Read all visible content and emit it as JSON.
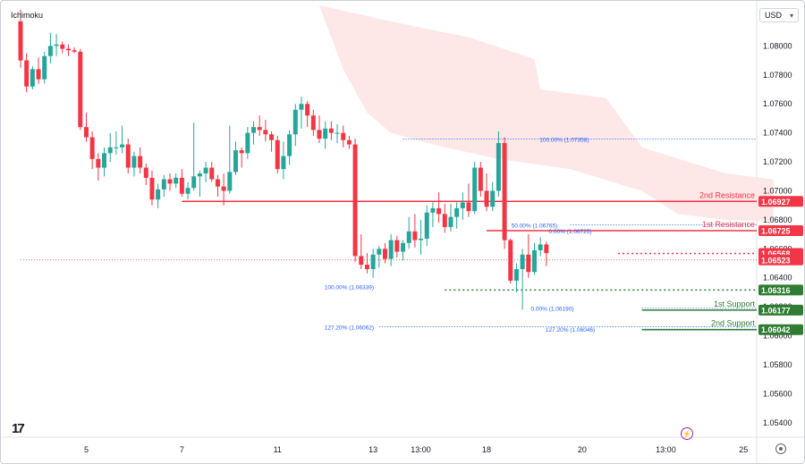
{
  "indicator": "Ichimoku",
  "currency": "USD",
  "icons": {
    "logo": "tradingview-logo",
    "settings": "gear-icon",
    "flash": "lightning-icon",
    "caret": "chevron-down-icon"
  },
  "colors": {
    "bull": "#26a69a",
    "bear": "#f23645",
    "cloud": "#fde7e7",
    "resistance": "#f23645",
    "support": "#2e7d32",
    "fib": "#2962ff",
    "axis_text": "#131722"
  },
  "chart_data": {
    "type": "candlestick",
    "instrument_ticks": [
      "1.08000",
      "1.07800",
      "1.07600",
      "1.07400",
      "1.07200",
      "1.07000",
      "1.06800",
      "1.06600",
      "1.06400",
      "1.06200",
      "1.06000",
      "1.05800",
      "1.05600",
      "1.05400"
    ],
    "ylim": [
      1.053,
      1.0828
    ],
    "x_ticks": [
      {
        "label": "5",
        "i": 11
      },
      {
        "label": "7",
        "i": 27
      },
      {
        "label": "11",
        "i": 43
      },
      {
        "label": "13",
        "i": 59
      },
      {
        "label": "13:00",
        "i": 67
      },
      {
        "label": "18",
        "i": 78
      },
      {
        "label": "20",
        "i": 94
      },
      {
        "label": "13:00",
        "i": 108
      },
      {
        "label": "25",
        "i": 121
      }
    ],
    "n_slots": 126,
    "candles": [
      [
        1.0817,
        1.0825,
        1.0785,
        1.079
      ],
      [
        1.079,
        1.0795,
        1.0768,
        1.0772
      ],
      [
        1.0772,
        1.0786,
        1.077,
        1.0784
      ],
      [
        1.0784,
        1.0792,
        1.0774,
        1.0777
      ],
      [
        1.0777,
        1.0796,
        1.0774,
        1.0793
      ],
      [
        1.0793,
        1.0809,
        1.0788,
        1.08
      ],
      [
        1.08,
        1.0808,
        1.0793,
        1.0801
      ],
      [
        1.0801,
        1.0803,
        1.0795,
        1.0798
      ],
      [
        1.0798,
        1.0801,
        1.0793,
        1.0797
      ],
      [
        1.0797,
        1.0799,
        1.0795,
        1.0796
      ],
      [
        1.0796,
        1.0798,
        1.0742,
        1.0744
      ],
      [
        1.0744,
        1.0754,
        1.0734,
        1.0737
      ],
      [
        1.0737,
        1.0741,
        1.0715,
        1.0722
      ],
      [
        1.0722,
        1.0726,
        1.0707,
        1.0716
      ],
      [
        1.0716,
        1.073,
        1.071,
        1.0726
      ],
      [
        1.0726,
        1.074,
        1.072,
        1.073
      ],
      [
        1.073,
        1.0741,
        1.0725,
        1.073
      ],
      [
        1.073,
        1.0745,
        1.0726,
        1.0732
      ],
      [
        1.0732,
        1.0736,
        1.0712,
        1.0716
      ],
      [
        1.0716,
        1.0727,
        1.071,
        1.0724
      ],
      [
        1.0724,
        1.073,
        1.0712,
        1.0716
      ],
      [
        1.0716,
        1.0719,
        1.0704,
        1.0709
      ],
      [
        1.0709,
        1.0714,
        1.069,
        1.0694
      ],
      [
        1.0694,
        1.0705,
        1.0688,
        1.0701
      ],
      [
        1.0701,
        1.0711,
        1.0696,
        1.0708
      ],
      [
        1.0708,
        1.0712,
        1.07,
        1.0705
      ],
      [
        1.0705,
        1.0712,
        1.0702,
        1.0709
      ],
      [
        1.0709,
        1.0715,
        1.0696,
        1.0698
      ],
      [
        1.0698,
        1.0706,
        1.0694,
        1.0702
      ],
      [
        1.0702,
        1.0747,
        1.07,
        1.071
      ],
      [
        1.071,
        1.0714,
        1.0696,
        1.0712
      ],
      [
        1.0712,
        1.072,
        1.0706,
        1.0716
      ],
      [
        1.0716,
        1.072,
        1.0706,
        1.0708
      ],
      [
        1.0708,
        1.0711,
        1.0696,
        1.0703
      ],
      [
        1.0703,
        1.0712,
        1.069,
        1.07
      ],
      [
        1.07,
        1.0745,
        1.0698,
        1.0713
      ],
      [
        1.0713,
        1.0734,
        1.0711,
        1.0728
      ],
      [
        1.0728,
        1.073,
        1.0716,
        1.0726
      ],
      [
        1.0726,
        1.0744,
        1.0722,
        1.074
      ],
      [
        1.074,
        1.0748,
        1.0732,
        1.0744
      ],
      [
        1.0744,
        1.0752,
        1.0738,
        1.0742
      ],
      [
        1.0742,
        1.0749,
        1.0734,
        1.0739
      ],
      [
        1.0739,
        1.0741,
        1.0727,
        1.0735
      ],
      [
        1.0735,
        1.0738,
        1.0712,
        1.0715
      ],
      [
        1.0715,
        1.0734,
        1.0708,
        1.0724
      ],
      [
        1.0724,
        1.0742,
        1.0718,
        1.0739
      ],
      [
        1.0739,
        1.076,
        1.0731,
        1.0756
      ],
      [
        1.0756,
        1.0765,
        1.0743,
        1.076
      ],
      [
        1.076,
        1.0762,
        1.0744,
        1.0752
      ],
      [
        1.0752,
        1.0756,
        1.0738,
        1.0742
      ],
      [
        1.0742,
        1.0752,
        1.0733,
        1.0736
      ],
      [
        1.0736,
        1.0748,
        1.0729,
        1.0743
      ],
      [
        1.0743,
        1.0748,
        1.0735,
        1.074
      ],
      [
        1.074,
        1.0746,
        1.0733,
        1.074
      ],
      [
        1.074,
        1.0745,
        1.073,
        1.0735
      ],
      [
        1.0735,
        1.0738,
        1.0729,
        1.0732
      ],
      [
        1.0732,
        1.0736,
        1.0651,
        1.0655
      ],
      [
        1.0655,
        1.067,
        1.0646,
        1.0649
      ],
      [
        1.0649,
        1.0657,
        1.0643,
        1.0646
      ],
      [
        1.0646,
        1.066,
        1.064,
        1.0656
      ],
      [
        1.0656,
        1.0662,
        1.0647,
        1.066
      ],
      [
        1.066,
        1.0664,
        1.065,
        1.0653
      ],
      [
        1.0653,
        1.067,
        1.0648,
        1.0666
      ],
      [
        1.0666,
        1.0669,
        1.0654,
        1.0658
      ],
      [
        1.0658,
        1.0666,
        1.0652,
        1.0664
      ],
      [
        1.0664,
        1.0682,
        1.066,
        1.0672
      ],
      [
        1.0672,
        1.0684,
        1.0661,
        1.0666
      ],
      [
        1.0666,
        1.068,
        1.0656,
        1.0667
      ],
      [
        1.0667,
        1.069,
        1.0662,
        1.0685
      ],
      [
        1.0685,
        1.0692,
        1.0675,
        1.0688
      ],
      [
        1.0688,
        1.0699,
        1.0678,
        1.0684
      ],
      [
        1.0684,
        1.0691,
        1.0671,
        1.0675
      ],
      [
        1.0675,
        1.0691,
        1.0672,
        1.0682
      ],
      [
        1.0682,
        1.0692,
        1.0674,
        1.0688
      ],
      [
        1.0688,
        1.0699,
        1.068,
        1.0692
      ],
      [
        1.0692,
        1.0705,
        1.0682,
        1.0686
      ],
      [
        1.0686,
        1.072,
        1.0684,
        1.0716
      ],
      [
        1.0716,
        1.072,
        1.0696,
        1.07
      ],
      [
        1.07,
        1.0712,
        1.0686,
        1.0689
      ],
      [
        1.0689,
        1.0706,
        1.0686,
        1.07
      ],
      [
        1.07,
        1.0741,
        1.0696,
        1.0733
      ],
      [
        1.0733,
        1.0737,
        1.066,
        1.0666
      ],
      [
        1.0666,
        1.0667,
        1.0636,
        1.0638
      ],
      [
        1.0638,
        1.065,
        1.063,
        1.0646
      ],
      [
        1.0646,
        1.066,
        1.0618,
        1.0656
      ],
      [
        1.0656,
        1.067,
        1.064,
        1.0644
      ],
      [
        1.0644,
        1.0664,
        1.0642,
        1.0659
      ],
      [
        1.0659,
        1.0668,
        1.0655,
        1.0663
      ],
      [
        1.0663,
        1.0665,
        1.0648,
        1.0657
      ]
    ],
    "cloud_upper": [
      [
        16,
        1.0828
      ],
      [
        50,
        1.0828
      ],
      [
        62,
        1.0817
      ],
      [
        70,
        1.081
      ],
      [
        75,
        1.0806
      ],
      [
        86,
        1.0791
      ],
      [
        87,
        1.077
      ],
      [
        98,
        1.0764
      ],
      [
        104,
        1.073
      ],
      [
        118,
        1.0712
      ],
      [
        126,
        1.0708
      ]
    ],
    "cloud_lower": [
      [
        16,
        1.0828
      ],
      [
        50,
        1.0828
      ],
      [
        54,
        1.0784
      ],
      [
        58,
        1.0754
      ],
      [
        62,
        1.074
      ],
      [
        70,
        1.0731
      ],
      [
        80,
        1.0722
      ],
      [
        92,
        1.0715
      ],
      [
        104,
        1.07
      ],
      [
        110,
        1.0684
      ],
      [
        118,
        1.068
      ],
      [
        126,
        1.0679
      ]
    ],
    "levels": [
      {
        "label": "2nd Resistance",
        "value": "1.06927",
        "y": 1.06927,
        "kind": "resistance",
        "from_i": 27
      },
      {
        "label": "1st Resistance",
        "value": "1.06725",
        "y": 1.06725,
        "kind": "resistance",
        "from_i": 78
      },
      {
        "label": "",
        "value": "1.06568",
        "y": 1.06568,
        "kind": "resistance-dotted",
        "from_i": 100
      },
      {
        "label": "",
        "value": "1.06523",
        "y": 1.06523,
        "kind": "current",
        "from_i": 0
      },
      {
        "label": "",
        "value": "1.06316",
        "y": 1.06316,
        "kind": "support-dotted",
        "from_i": 71
      },
      {
        "label": "1st Support",
        "value": "1.06177",
        "y": 1.06177,
        "kind": "support",
        "from_i": 104
      },
      {
        "label": "2nd Support",
        "value": "1.06042",
        "y": 1.06042,
        "kind": "support",
        "from_i": 104
      }
    ],
    "fib_labels": [
      {
        "text": "100.00% (1.07358)",
        "i": 91,
        "y": 1.07358
      },
      {
        "text": "50.00% (1.06765)",
        "i": 86,
        "y": 1.06765
      },
      {
        "text": "0.00% (1.06725)",
        "i": 92,
        "y": 1.06725
      },
      {
        "text": "100.00% (1.06339)",
        "i": 55,
        "y": 1.06339
      },
      {
        "text": "0.00% (1.06190)",
        "i": 89,
        "y": 1.0619
      },
      {
        "text": "127.20% (1.06062)",
        "i": 55,
        "y": 1.06062
      },
      {
        "text": "127.20% (1.06046)",
        "i": 92,
        "y": 1.06046
      }
    ],
    "fib_lines": [
      {
        "y": 1.07358,
        "from_i": 64,
        "to_i": 126
      },
      {
        "y": 1.06765,
        "from_i": 92,
        "to_i": 126
      },
      {
        "y": 1.0619,
        "from_i": 104,
        "to_i": 126
      },
      {
        "y": 1.06062,
        "from_i": 60,
        "to_i": 126
      },
      {
        "y": 1.06046,
        "from_i": 104,
        "to_i": 126
      }
    ]
  }
}
